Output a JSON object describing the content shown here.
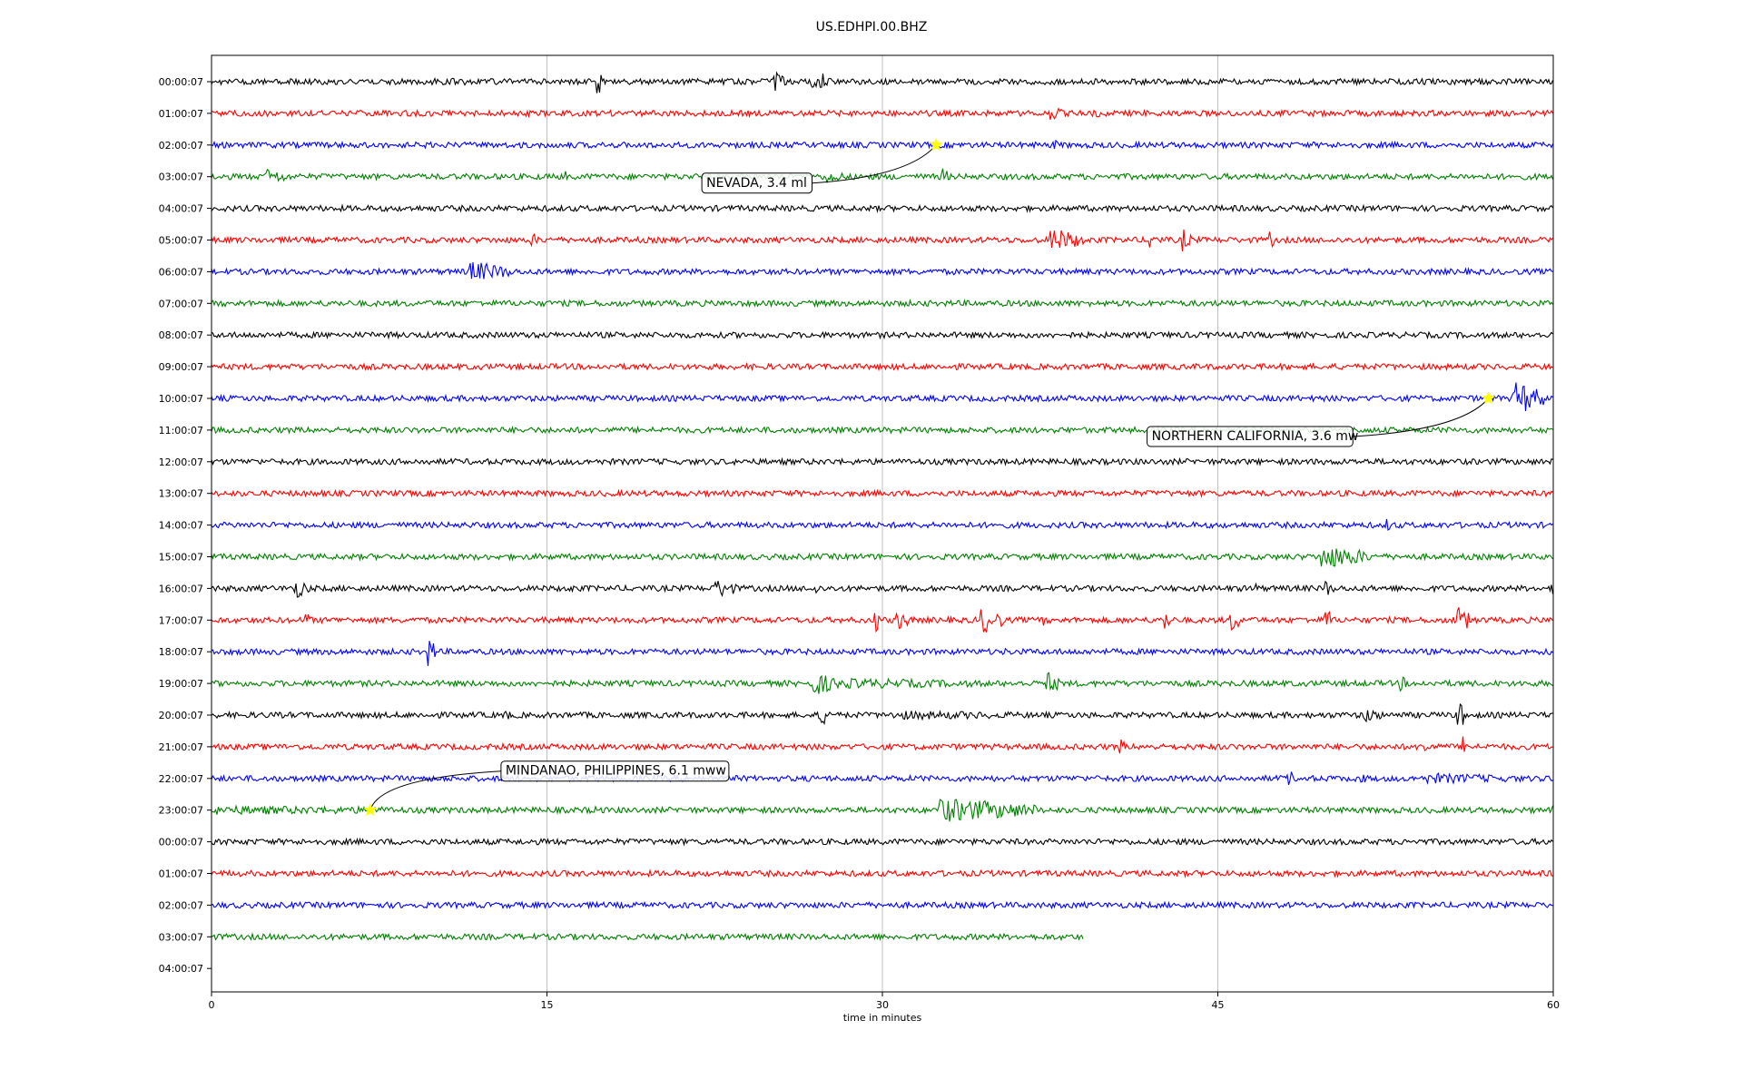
{
  "chart_data": {
    "type": "line",
    "title": "US.EDHPI.00.BHZ",
    "xlabel": "time in minutes",
    "ylabel": "",
    "xlim": [
      0,
      60
    ],
    "x_ticks": [
      "0",
      "15",
      "30",
      "45",
      "60"
    ],
    "grid": "vertical lines at x ticks",
    "row_labels": [
      "00:00:07",
      "01:00:07",
      "02:00:07",
      "03:00:07",
      "04:00:07",
      "05:00:07",
      "06:00:07",
      "07:00:07",
      "08:00:07",
      "09:00:07",
      "10:00:07",
      "11:00:07",
      "12:00:07",
      "13:00:07",
      "14:00:07",
      "15:00:07",
      "16:00:07",
      "17:00:07",
      "18:00:07",
      "19:00:07",
      "20:00:07",
      "21:00:07",
      "22:00:07",
      "23:00:07",
      "00:00:07",
      "01:00:07",
      "02:00:07",
      "03:00:07",
      "04:00:07"
    ],
    "trace_colors": [
      "#000000",
      "#ff0000",
      "#0000ff",
      "#008000"
    ],
    "trace_end_minutes": [
      60,
      60,
      60,
      60,
      60,
      60,
      60,
      60,
      60,
      60,
      60,
      60,
      60,
      60,
      60,
      60,
      60,
      60,
      60,
      60,
      60,
      60,
      60,
      60,
      60,
      60,
      60,
      39,
      null
    ],
    "events": [
      {
        "label": "NEVADA, 3.4 ml",
        "row": 2,
        "minute": 32.4
      },
      {
        "label": "NORTHERN CALIFORNIA, 3.6 mw",
        "row": 10,
        "minute": 57.1
      },
      {
        "label": "MINDANAO, PHILIPPINES, 6.1 mww",
        "row": 23,
        "minute": 7.1
      }
    ],
    "marker_color": "#ffff00"
  }
}
